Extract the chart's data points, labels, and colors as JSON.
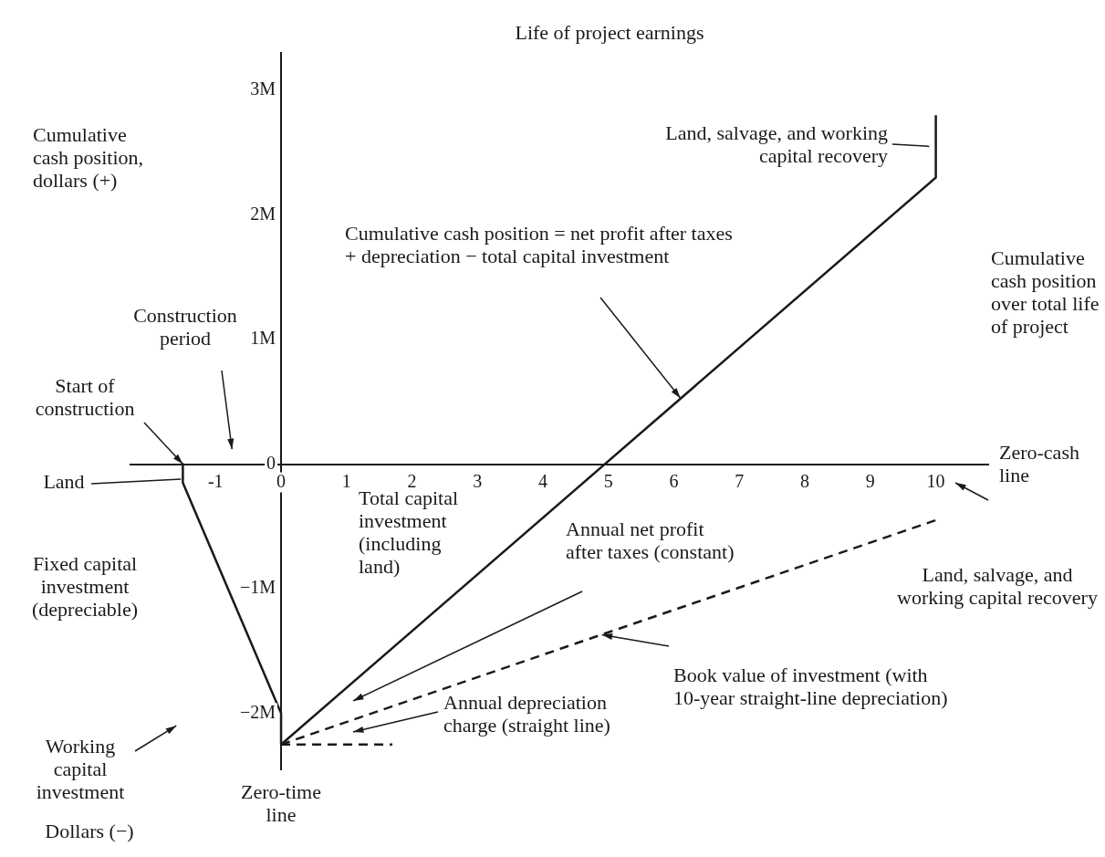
{
  "chart_data": {
    "type": "line",
    "ylabel": "Cumulative cash position, dollars (+)",
    "xlabel": "Zero-cash line",
    "xlim": [
      -2.3,
      10.8
    ],
    "ylim": [
      -2.45,
      3.3
    ],
    "xticks": [
      -1,
      0,
      1,
      2,
      3,
      4,
      5,
      6,
      7,
      8,
      9,
      10
    ],
    "yticks": [
      {
        "value": -2,
        "label": "−2M"
      },
      {
        "value": -1,
        "label": "−1M"
      },
      {
        "value": 0,
        "label": "0"
      },
      {
        "value": 1,
        "label": "1M"
      },
      {
        "value": 2,
        "label": "2M"
      },
      {
        "value": 3,
        "label": "3M"
      }
    ],
    "grid": false,
    "legend": false,
    "marker": "none",
    "series": [
      {
        "type": "line",
        "color": "#1a1a1a",
        "line_style": "solid",
        "x": [
          -1.5,
          -1.5,
          0,
          0,
          10,
          10
        ],
        "values": [
          0,
          -0.15,
          -2,
          -2.25,
          2.3,
          2.8
        ]
      },
      {
        "type": "line",
        "color": "#1a1a1a",
        "line_style": "dashed",
        "x": [
          0,
          10
        ],
        "values": [
          -2.25,
          -0.45
        ]
      },
      {
        "type": "line",
        "color": "#1a1a1a",
        "line_style": "dashed",
        "x": [
          0,
          1.7
        ],
        "values": [
          -2.25,
          -2.25
        ]
      }
    ],
    "annotations": [
      "Life of project earnings",
      "Land, salvage, and working capital recovery",
      "Cumulative cash position = net profit after taxes + depreciation − total capital investment",
      "Construction period",
      {
        "text": "Start of construction",
        "x": -1.5,
        "y": 0
      },
      "Land",
      "Fixed capital investment (depreciable)",
      "Working capital investment",
      "Zero-time line",
      "Dollars (−)",
      "Total capital investment (including land)",
      "Annual net profit after taxes (constant)",
      "Annual depreciation charge (straight line)",
      {
        "text": "Book value of investment (with 10-year straight-line depreciation)",
        "x": 4.9,
        "y": -1.37
      },
      "Land, salvage, and working capital recovery",
      "Cumulative cash position over total life of project"
    ]
  }
}
